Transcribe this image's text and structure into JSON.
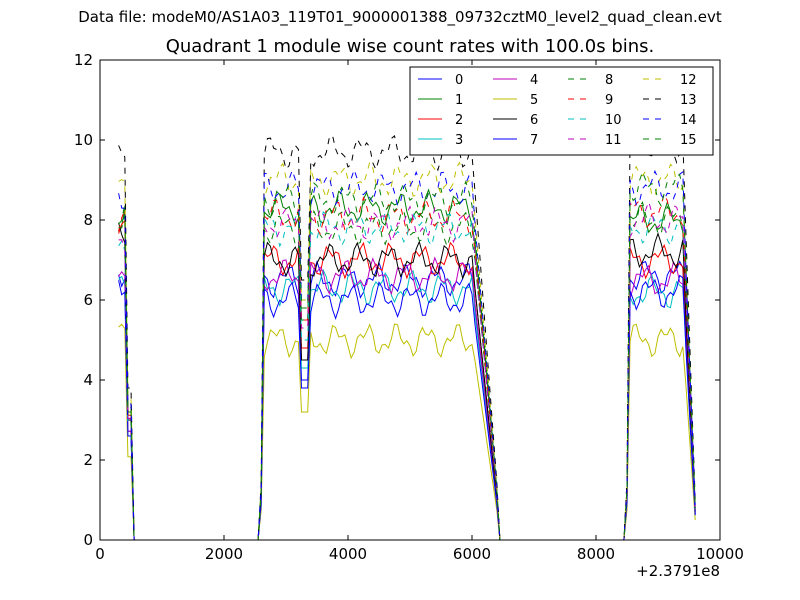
{
  "header": {
    "suptitle": "Data file: modeM0/AS1A03_119T01_9000001388_09732cztM0_level2_quad_clean.evt"
  },
  "chart_data": {
    "type": "line",
    "title": "Quadrant 1 module wise count rates with 100.0s bins.",
    "xlabel": "",
    "ylabel": "",
    "x_offset_label": "+2.3791e8",
    "xlim": [
      0,
      10000
    ],
    "ylim": [
      0,
      12
    ],
    "xticks": [
      0,
      2000,
      4000,
      6000,
      8000,
      10000
    ],
    "yticks": [
      0,
      2,
      4,
      6,
      8,
      10,
      12
    ],
    "grid": false,
    "legend_placement": "top-right",
    "legend_columns": 4,
    "segments": [
      {
        "x_start": 300,
        "x_end": 500
      },
      {
        "x_start": 2600,
        "x_end": 6400
      },
      {
        "x_start": 8500,
        "x_end": 9600
      }
    ],
    "series": [
      {
        "name": "0",
        "color": "#0000ff",
        "dash": "solid",
        "segment_levels": [
          6.8,
          6.5,
          6.6
        ],
        "dip": 4.0
      },
      {
        "name": "1",
        "color": "#008000",
        "dash": "solid",
        "segment_levels": [
          8.0,
          8.3,
          8.0
        ],
        "dip": 5.5
      },
      {
        "name": "2",
        "color": "#ff0000",
        "dash": "solid",
        "segment_levels": [
          7.6,
          7.0,
          7.0
        ],
        "dip": 4.8
      },
      {
        "name": "3",
        "color": "#00bfbf",
        "dash": "solid",
        "segment_levels": [
          6.5,
          6.3,
          6.2
        ],
        "dip": 4.3
      },
      {
        "name": "4",
        "color": "#bf00bf",
        "dash": "solid",
        "segment_levels": [
          6.8,
          6.6,
          6.5
        ],
        "dip": 4.5
      },
      {
        "name": "5",
        "color": "#bfbf00",
        "dash": "solid",
        "segment_levels": [
          5.2,
          5.0,
          5.0
        ],
        "dip": 3.2
      },
      {
        "name": "6",
        "color": "#000000",
        "dash": "solid",
        "segment_levels": [
          7.5,
          7.0,
          7.2
        ],
        "dip": 4.5
      },
      {
        "name": "7",
        "color": "#0000ff",
        "dash": "solid",
        "segment_levels": [
          6.5,
          6.0,
          6.2
        ],
        "dip": 3.8
      },
      {
        "name": "8",
        "color": "#008000",
        "dash": "dashed",
        "segment_levels": [
          8.3,
          7.8,
          8.0
        ],
        "dip": 5.5
      },
      {
        "name": "9",
        "color": "#ff0000",
        "dash": "dashed",
        "segment_levels": [
          7.8,
          8.1,
          8.2
        ],
        "dip": 5.5
      },
      {
        "name": "10",
        "color": "#00bfbf",
        "dash": "dashed",
        "segment_levels": [
          7.2,
          7.8,
          7.8
        ],
        "dip": 5.0
      },
      {
        "name": "11",
        "color": "#bf00bf",
        "dash": "dashed",
        "segment_levels": [
          7.6,
          7.9,
          8.0
        ],
        "dip": 5.3
      },
      {
        "name": "12",
        "color": "#bfbf00",
        "dash": "dashed",
        "segment_levels": [
          9.0,
          9.0,
          9.0
        ],
        "dip": 6.0
      },
      {
        "name": "13",
        "color": "#000000",
        "dash": "dashed",
        "segment_levels": [
          9.5,
          9.7,
          9.9
        ],
        "dip": 6.5
      },
      {
        "name": "14",
        "color": "#0000ff",
        "dash": "dashed",
        "segment_levels": [
          8.5,
          8.8,
          8.8
        ],
        "dip": 6.0
      },
      {
        "name": "15",
        "color": "#008000",
        "dash": "dashed",
        "segment_levels": [
          8.2,
          8.5,
          8.8
        ],
        "dip": 5.8
      }
    ]
  }
}
